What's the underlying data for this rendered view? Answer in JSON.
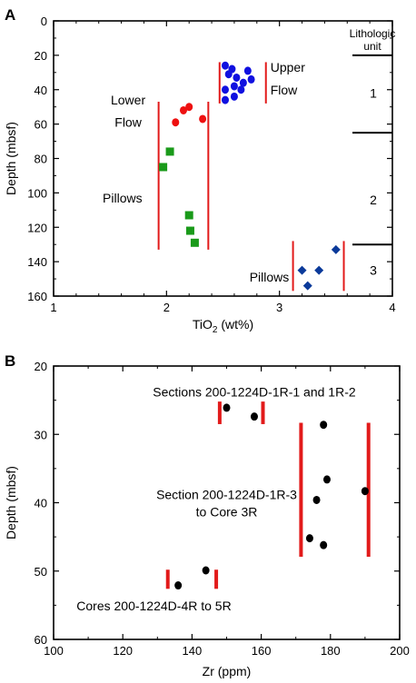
{
  "chart_data": [
    {
      "type": "scatter",
      "panel_label": "A",
      "xlabel": "TiO",
      "xlabel_sub": "2",
      "xlabel_suffix": " (wt%)",
      "ylabel": "Depth (mbsf)",
      "xlim": [
        1,
        4
      ],
      "ylim": [
        160,
        0
      ],
      "y_inverted": true,
      "xticks": [
        "1",
        "2",
        "3",
        "4"
      ],
      "yticks": [
        "0",
        "20",
        "40",
        "60",
        "80",
        "100",
        "120",
        "140",
        "160"
      ],
      "grid": false,
      "series": [
        {
          "marker": "circle",
          "color": "#1010e0",
          "points": [
            [
              2.52,
              26
            ],
            [
              2.58,
              28
            ],
            [
              2.55,
              31
            ],
            [
              2.72,
              29
            ],
            [
              2.62,
              33
            ],
            [
              2.75,
              34
            ],
            [
              2.68,
              36
            ],
            [
              2.6,
              38
            ],
            [
              2.66,
              40
            ],
            [
              2.52,
              40
            ],
            [
              2.6,
              44
            ],
            [
              2.52,
              46
            ]
          ]
        },
        {
          "marker": "circle",
          "color": "#ee1010",
          "points": [
            [
              2.2,
              50
            ],
            [
              2.15,
              52
            ],
            [
              2.32,
              57
            ],
            [
              2.08,
              59
            ]
          ]
        },
        {
          "marker": "square",
          "color": "#1a9a1a",
          "points": [
            [
              2.03,
              76
            ],
            [
              1.97,
              85
            ],
            [
              2.2,
              113
            ],
            [
              2.21,
              122
            ],
            [
              2.25,
              129
            ]
          ]
        },
        {
          "marker": "diamond",
          "color": "#0b3a9a",
          "points": [
            [
              3.5,
              133
            ],
            [
              3.2,
              145
            ],
            [
              3.35,
              145
            ],
            [
              3.25,
              154
            ]
          ]
        }
      ],
      "group_bars": [
        {
          "x": [
            2.47,
            2.88
          ],
          "y": [
            24,
            48
          ]
        },
        {
          "x": [
            1.93,
            2.37
          ],
          "y": [
            47,
            133
          ]
        },
        {
          "x": [
            3.12,
            3.57
          ],
          "y": [
            128,
            157
          ]
        }
      ],
      "unit_header": [
        "Lithologic",
        "unit"
      ],
      "unit_boundaries": [
        20,
        65,
        130
      ],
      "units": [
        {
          "label": "1",
          "depth": 42
        },
        {
          "label": "2",
          "depth": 104
        },
        {
          "label": "3",
          "depth": 145
        }
      ],
      "annotations": [
        {
          "lines": [
            "Upper",
            "Flow"
          ],
          "x": 2.92,
          "y": [
            27,
            40
          ],
          "anchor": "start"
        },
        {
          "lines": [
            "Lower",
            "Flow"
          ],
          "x": 1.66,
          "y": [
            46,
            59
          ],
          "anchor": "middle"
        },
        {
          "lines": [
            "Pillows"
          ],
          "x": 1.61,
          "y": [
            103
          ],
          "anchor": "middle"
        },
        {
          "lines": [
            "Pillows"
          ],
          "x": 2.91,
          "y": [
            149
          ],
          "anchor": "middle"
        }
      ]
    },
    {
      "type": "scatter",
      "panel_label": "B",
      "xlabel": "Zr (ppm)",
      "ylabel": "Depth (mbsf)",
      "xlim": [
        100,
        200
      ],
      "ylim": [
        60,
        20
      ],
      "y_inverted": true,
      "xticks": [
        "100",
        "120",
        "140",
        "160",
        "180",
        "200"
      ],
      "yticks": [
        "20",
        "30",
        "40",
        "50",
        "60"
      ],
      "grid": false,
      "series": [
        {
          "marker": "circle",
          "color": "#000000",
          "points": [
            [
              150,
              26.1
            ],
            [
              158,
              27.4
            ],
            [
              178,
              28.6
            ],
            [
              179,
              36.6
            ],
            [
              190,
              38.3
            ],
            [
              176,
              39.6
            ],
            [
              174,
              45.2
            ],
            [
              178,
              46.2
            ],
            [
              144,
              49.9
            ],
            [
              136,
              52.1
            ]
          ]
        }
      ],
      "group_bars": [
        {
          "x": [
            148,
            160.5
          ],
          "y": [
            25.2,
            28.5
          ]
        },
        {
          "x": [
            171.5,
            191
          ],
          "y": [
            28.3,
            47.9
          ]
        },
        {
          "x": [
            133,
            147
          ],
          "y": [
            49.8,
            52.6
          ]
        }
      ],
      "annotations": [
        {
          "lines": [
            "Sections 200-1224D-1R-1 and 1R-2"
          ],
          "x": 158,
          "y": [
            23.8
          ],
          "anchor": "middle"
        },
        {
          "lines": [
            "Section 200-1224D-1R-3",
            "to Core 3R"
          ],
          "x": 150,
          "y": [
            38.8,
            41.3
          ],
          "anchor": "middle"
        },
        {
          "lines": [
            "Cores 200-1224D-4R to 5R"
          ],
          "x": 129,
          "y": [
            55.1
          ],
          "anchor": "middle"
        }
      ]
    }
  ]
}
